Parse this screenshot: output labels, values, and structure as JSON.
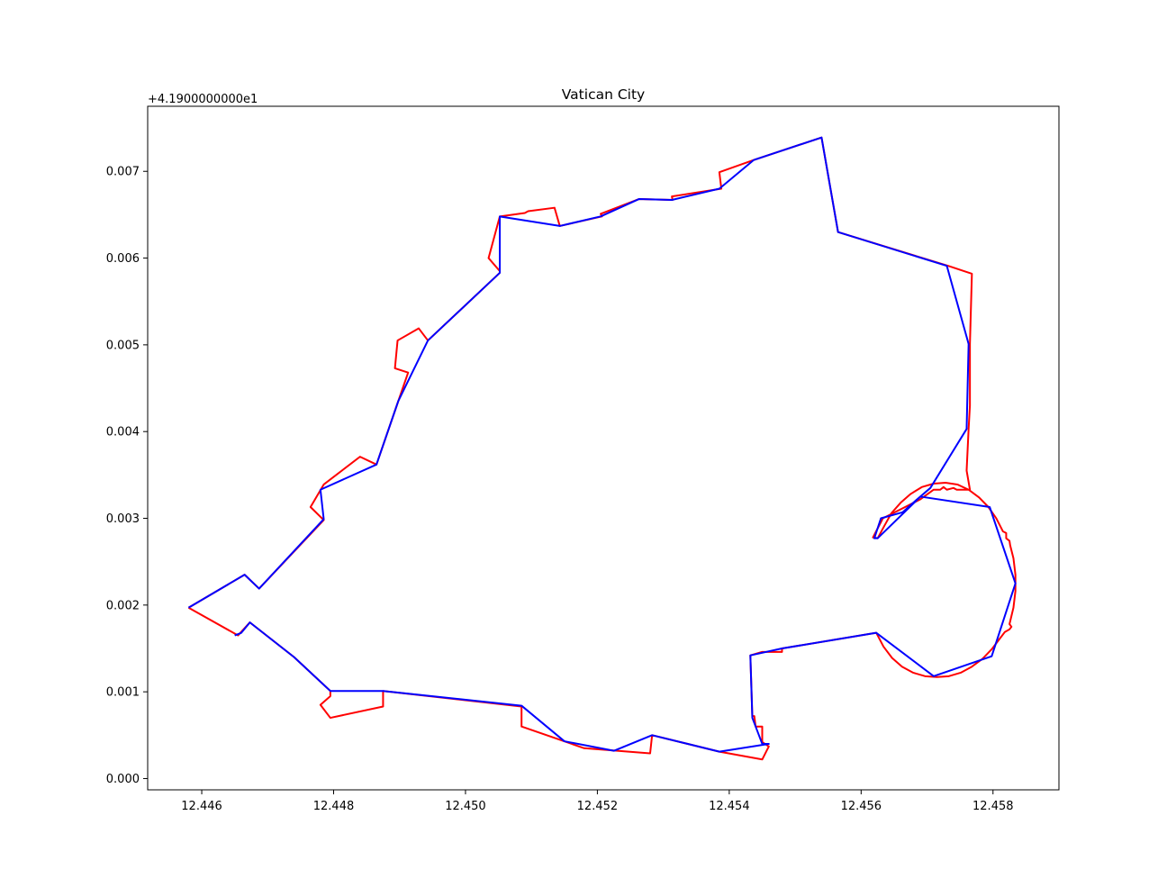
{
  "chart_data": {
    "type": "line",
    "title": "Vatican City",
    "xlabel": "",
    "ylabel": "",
    "y_offset_label": "+4.1900000000e1",
    "xlim": [
      12.44518,
      12.459
    ],
    "ylim": [
      -0.00013,
      0.00775
    ],
    "x_ticks": [
      12.446,
      12.448,
      12.45,
      12.452,
      12.454,
      12.456,
      12.458
    ],
    "x_tick_labels": [
      "12.446",
      "12.448",
      "12.450",
      "12.452",
      "12.454",
      "12.456",
      "12.458"
    ],
    "y_ticks": [
      0.0,
      0.001,
      0.002,
      0.003,
      0.004,
      0.005,
      0.006,
      0.007
    ],
    "y_tick_labels": [
      "0.000",
      "0.001",
      "0.002",
      "0.003",
      "0.004",
      "0.005",
      "0.006",
      "0.007"
    ],
    "grid": false,
    "series": [
      {
        "color": "#ff0000",
        "points": [
          [
            12.4458,
            0.00197
          ],
          [
            12.44655,
            0.00165
          ],
          [
            12.44673,
            0.0018
          ],
          [
            12.4474,
            0.0014
          ],
          [
            12.44795,
            0.00101
          ],
          [
            12.44795,
            0.00095
          ],
          [
            12.4478,
            0.00085
          ],
          [
            12.44795,
            0.0007
          ],
          [
            12.44875,
            0.00083
          ],
          [
            12.44875,
            0.00101
          ],
          [
            12.45085,
            0.00083
          ],
          [
            12.45085,
            0.0006
          ],
          [
            12.4518,
            0.00035
          ],
          [
            12.4528,
            0.00029
          ],
          [
            12.45283,
            0.0005
          ],
          [
            12.45385,
            0.00031
          ],
          [
            12.4545,
            0.00022
          ],
          [
            12.4546,
            0.00037
          ],
          [
            12.4545,
            0.00042
          ],
          [
            12.4545,
            0.0006
          ],
          [
            12.4544,
            0.0006
          ],
          [
            12.45438,
            0.00072
          ],
          [
            12.45435,
            0.00072
          ],
          [
            12.45432,
            0.00142
          ],
          [
            12.4545,
            0.00146
          ],
          [
            12.4548,
            0.00146
          ],
          [
            12.4548,
            0.0015
          ],
          [
            12.45623,
            0.00168
          ],
          [
            12.45634,
            0.00152
          ],
          [
            12.45647,
            0.00139
          ],
          [
            12.45662,
            0.00129
          ],
          [
            12.45679,
            0.00122
          ],
          [
            12.45697,
            0.00118
          ],
          [
            12.45715,
            0.00117
          ],
          [
            12.45733,
            0.00118
          ],
          [
            12.45751,
            0.00122
          ],
          [
            12.45768,
            0.00129
          ],
          [
            12.45784,
            0.00138
          ],
          [
            12.45798,
            0.00149
          ],
          [
            12.4581,
            0.00161
          ],
          [
            12.45818,
            0.00169
          ],
          [
            12.45825,
            0.00172
          ],
          [
            12.45828,
            0.00175
          ],
          [
            12.45825,
            0.00178
          ],
          [
            12.45831,
            0.00197
          ],
          [
            12.45834,
            0.00216
          ],
          [
            12.45834,
            0.00235
          ],
          [
            12.45831,
            0.00254
          ],
          [
            12.45826,
            0.00269
          ],
          [
            12.45825,
            0.00274
          ],
          [
            12.4582,
            0.00277
          ],
          [
            12.4582,
            0.00283
          ],
          [
            12.45815,
            0.00285
          ],
          [
            12.45805,
            0.003
          ],
          [
            12.45793,
            0.00313
          ],
          [
            12.45779,
            0.00324
          ],
          [
            12.45763,
            0.00333
          ],
          [
            12.45746,
            0.00339
          ],
          [
            12.45728,
            0.00341
          ],
          [
            12.4571,
            0.0034
          ],
          [
            12.45692,
            0.00336
          ],
          [
            12.45675,
            0.00328
          ],
          [
            12.4566,
            0.00318
          ],
          [
            12.45646,
            0.00306
          ],
          [
            12.45635,
            0.00291
          ],
          [
            12.45625,
            0.00277
          ],
          [
            12.45618,
            0.00278
          ],
          [
            12.45633,
            0.003
          ],
          [
            12.4569,
            0.00322
          ],
          [
            12.4571,
            0.00333
          ],
          [
            12.4572,
            0.00333
          ],
          [
            12.45725,
            0.00336
          ],
          [
            12.4573,
            0.00333
          ],
          [
            12.4574,
            0.00335
          ],
          [
            12.45745,
            0.00333
          ],
          [
            12.45765,
            0.00333
          ],
          [
            12.4576,
            0.00355
          ],
          [
            12.45763,
            0.00403
          ],
          [
            12.45765,
            0.0043
          ],
          [
            12.45765,
            0.00501
          ],
          [
            12.45768,
            0.00582
          ],
          [
            12.45732,
            0.00591
          ],
          [
            12.45565,
            0.0063
          ],
          [
            12.4554,
            0.00739
          ],
          [
            12.45437,
            0.00713
          ],
          [
            12.45385,
            0.00699
          ],
          [
            12.45388,
            0.0068
          ],
          [
            12.45313,
            0.00671
          ],
          [
            12.45314,
            0.00667
          ],
          [
            12.45263,
            0.00668
          ],
          [
            12.45205,
            0.00651
          ],
          [
            12.45207,
            0.00648
          ],
          [
            12.45143,
            0.00637
          ],
          [
            12.45135,
            0.00658
          ],
          [
            12.45095,
            0.00654
          ],
          [
            12.4509,
            0.00652
          ],
          [
            12.45052,
            0.00648
          ],
          [
            12.45035,
            0.006
          ],
          [
            12.45052,
            0.00585
          ],
          [
            12.45052,
            0.00583
          ],
          [
            12.44943,
            0.00505
          ],
          [
            12.44929,
            0.00519
          ],
          [
            12.44897,
            0.00505
          ],
          [
            12.44893,
            0.00473
          ],
          [
            12.44913,
            0.00468
          ],
          [
            12.44898,
            0.00435
          ],
          [
            12.44865,
            0.00362
          ],
          [
            12.4484,
            0.00371
          ],
          [
            12.44785,
            0.00339
          ],
          [
            12.44765,
            0.00313
          ],
          [
            12.44785,
            0.00298
          ],
          [
            12.44687,
            0.00219
          ],
          [
            12.44665,
            0.00235
          ],
          [
            12.4458,
            0.00197
          ]
        ]
      },
      {
        "color": "#0000ff",
        "points": [
          [
            12.4458,
            0.00197
          ],
          [
            12.44665,
            0.00235
          ],
          [
            12.44687,
            0.00219
          ],
          [
            12.44785,
            0.00299
          ],
          [
            12.4478,
            0.00333
          ],
          [
            12.44865,
            0.00362
          ],
          [
            12.44898,
            0.00435
          ],
          [
            12.44943,
            0.00505
          ],
          [
            12.45052,
            0.00583
          ],
          [
            12.45052,
            0.00648
          ],
          [
            12.45143,
            0.00637
          ],
          [
            12.45205,
            0.00648
          ],
          [
            12.45263,
            0.00668
          ],
          [
            12.45313,
            0.00667
          ],
          [
            12.45385,
            0.0068
          ],
          [
            12.45437,
            0.00713
          ],
          [
            12.4554,
            0.00739
          ],
          [
            12.45565,
            0.0063
          ],
          [
            12.4573,
            0.00591
          ],
          [
            12.45763,
            0.00501
          ],
          [
            12.4576,
            0.00403
          ],
          [
            12.45705,
            0.00335
          ],
          [
            12.45685,
            0.00322
          ],
          [
            12.45663,
            0.00307
          ],
          [
            12.4563,
            0.003
          ],
          [
            12.4562,
            0.00277
          ],
          [
            12.45625,
            0.00277
          ],
          [
            12.4569,
            0.00325
          ],
          [
            12.45795,
            0.00313
          ],
          [
            12.45834,
            0.00225
          ],
          [
            12.45798,
            0.00141
          ],
          [
            12.4571,
            0.00118
          ],
          [
            12.45623,
            0.00168
          ],
          [
            12.4548,
            0.0015
          ],
          [
            12.45432,
            0.00142
          ],
          [
            12.45435,
            0.0007
          ],
          [
            12.4545,
            0.0004
          ],
          [
            12.4546,
            0.0004
          ],
          [
            12.45385,
            0.00031
          ],
          [
            12.45283,
            0.0005
          ],
          [
            12.45225,
            0.00032
          ],
          [
            12.4515,
            0.00043
          ],
          [
            12.45085,
            0.00084
          ],
          [
            12.44875,
            0.00101
          ],
          [
            12.44795,
            0.00101
          ],
          [
            12.4474,
            0.0014
          ],
          [
            12.44673,
            0.0018
          ],
          [
            12.4466,
            0.00168
          ],
          [
            12.4465,
            0.00165
          ]
        ]
      }
    ]
  }
}
